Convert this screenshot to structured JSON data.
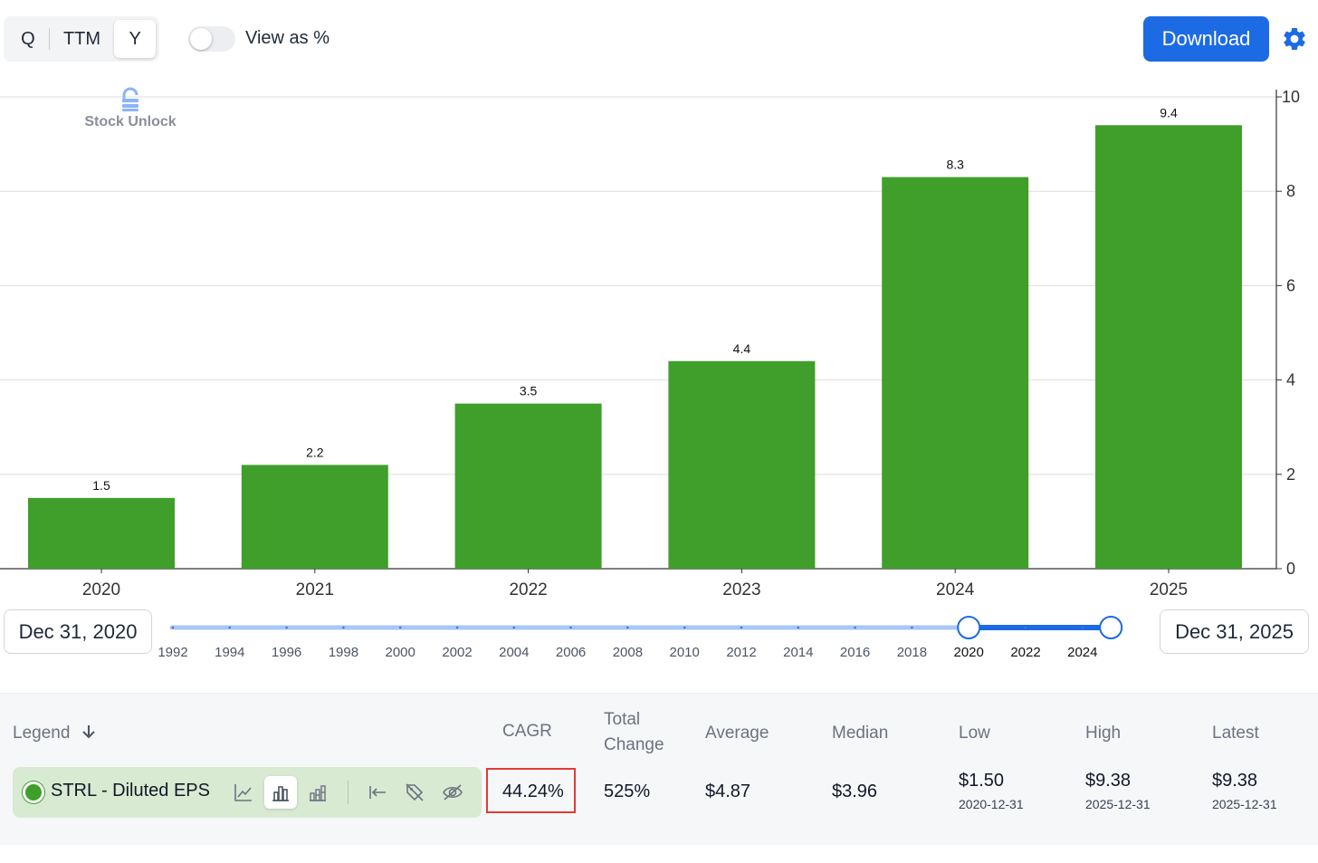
{
  "toolbar": {
    "period_tabs": [
      "Q",
      "TTM",
      "Y"
    ],
    "active_period": "Y",
    "view_as_percent_label": "View as %",
    "view_as_percent_on": false,
    "download_label": "Download",
    "accent_color": "#1d6ae5"
  },
  "watermark": "Stock Unlock",
  "chart_data": {
    "type": "bar",
    "categories": [
      "2020",
      "2021",
      "2022",
      "2023",
      "2024",
      "2025"
    ],
    "values": [
      1.5,
      2.2,
      3.5,
      4.4,
      8.3,
      9.4
    ],
    "data_labels": [
      "1.5",
      "2.2",
      "3.5",
      "4.4",
      "8.3",
      "9.4"
    ],
    "y_ticks": [
      0,
      2,
      4,
      6,
      8,
      10
    ],
    "ylim": [
      0,
      10
    ],
    "y_axis_side": "right",
    "grid": true,
    "bar_color": "#3f9f2a",
    "title": "",
    "xlabel": "",
    "ylabel": ""
  },
  "range": {
    "start_label": "Dec 31, 2020",
    "end_label": "Dec 31, 2025",
    "year_ticks": [
      "1992",
      "1994",
      "1996",
      "1998",
      "2000",
      "2002",
      "2004",
      "2006",
      "2008",
      "2010",
      "2012",
      "2014",
      "2016",
      "2018",
      "2020",
      "2022",
      "2024"
    ],
    "selected_start_year": 2020,
    "selected_end_year": 2025
  },
  "table": {
    "headers": {
      "legend": "Legend",
      "cagr": "CAGR",
      "total_change_1": "Total",
      "total_change_2": "Change",
      "average": "Average",
      "median": "Median",
      "low": "Low",
      "high": "High",
      "latest": "Latest"
    },
    "row": {
      "name": "STRL - Diluted EPS",
      "color": "#3f9f2a",
      "cagr": "44.24%",
      "total_change": "525%",
      "average": "$4.87",
      "median": "$3.96",
      "low": "$1.50",
      "low_date": "2020-12-31",
      "high": "$9.38",
      "high_date": "2025-12-31",
      "latest": "$9.38",
      "latest_date": "2025-12-31"
    },
    "icons": [
      "line-chart-icon",
      "bar-chart-icon",
      "stacked-bar-icon",
      "axis-left-icon",
      "hide-labels-icon",
      "hide-series-icon"
    ],
    "highlight_color": "#e53935"
  }
}
